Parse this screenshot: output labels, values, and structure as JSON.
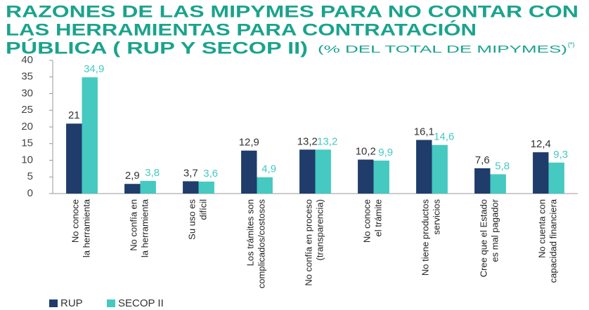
{
  "chart_data": {
    "type": "bar",
    "title_lines": [
      "RAZONES DE LAS MIPYMES PARA NO CONTAR CON",
      "LAS HERRAMIENTAS PARA CONTRATACIÓN",
      "PÚBLICA ( RUP Y SECOP II)"
    ],
    "subtitle": "(% DEL TOTAL DE MIPYMES)",
    "footnote_marker": "(*)",
    "categories": [
      "No conoce\nla herramienta",
      "No confía en\nla herramienta",
      "Su uso es\ndifícil",
      "Los trámites son\ncomplicados/costosos",
      "No confía en proceso\n(transparencia)",
      "No conoce\nel trámite",
      "No tiene productos\nservicios",
      "Cree que el Estado\nes mal pagador",
      "No cuenta con\ncapacidad financiera"
    ],
    "series": [
      {
        "name": "RUP",
        "color": "#1f3c6b",
        "label_color": "#333333",
        "values": [
          21,
          2.9,
          3.7,
          12.9,
          13.2,
          10.2,
          16.1,
          7.6,
          12.4
        ],
        "value_labels": [
          "21",
          "2,9",
          "3,7",
          "12,9",
          "13,2",
          "10,2",
          "16,1",
          "7,6",
          "12,4"
        ]
      },
      {
        "name": "SECOP II",
        "color": "#45c9c1",
        "label_color": "#45c9c1",
        "values": [
          34.9,
          3.8,
          3.6,
          4.9,
          13.2,
          9.9,
          14.6,
          5.8,
          9.3
        ],
        "value_labels": [
          "34,9",
          "3,8",
          "3,6",
          "4,9",
          "13,2",
          "9,9",
          "14,6",
          "5,8",
          "9,3"
        ]
      }
    ],
    "ylim": [
      0,
      40
    ],
    "yticks": [
      0,
      5,
      10,
      15,
      20,
      25,
      30,
      35,
      40
    ]
  }
}
